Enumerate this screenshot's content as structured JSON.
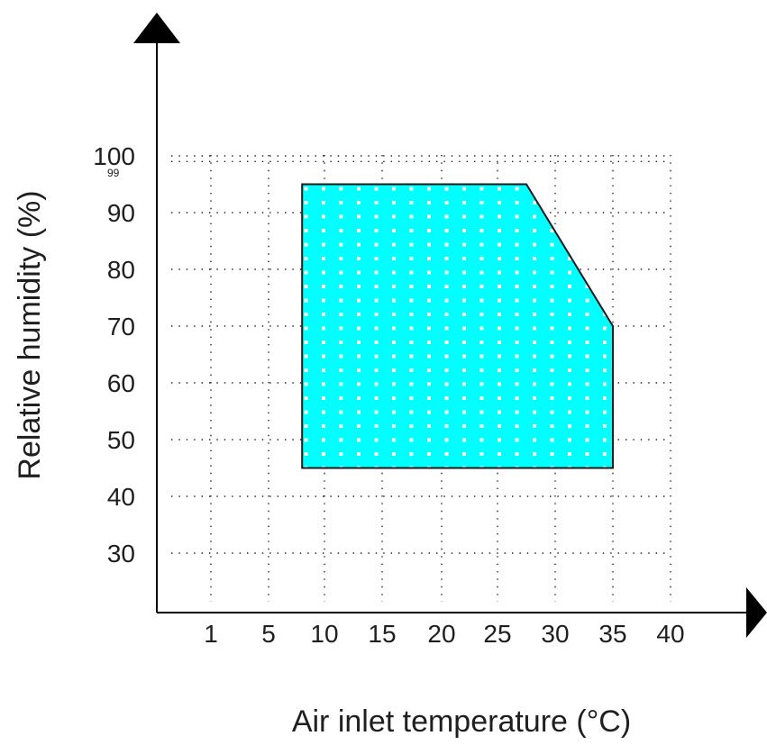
{
  "chart_data": {
    "type": "area",
    "xlabel": "Air inlet temperature (°C)",
    "ylabel": "Relative humidity (%)",
    "x_ticks": [
      "1",
      "5",
      "10",
      "15",
      "20",
      "25",
      "30",
      "35",
      "40"
    ],
    "y_ticks": [
      "30",
      "40",
      "50",
      "60",
      "70",
      "80",
      "90",
      "100"
    ],
    "y_special_tick": "99",
    "grid": "dotted",
    "region_color": "#00ffff",
    "region": {
      "points": [
        {
          "x": 8,
          "y": 45
        },
        {
          "x": 8,
          "y": 95
        },
        {
          "x": 27.5,
          "y": 95
        },
        {
          "x": 35,
          "y": 70
        },
        {
          "x": 35,
          "y": 45
        }
      ]
    }
  }
}
